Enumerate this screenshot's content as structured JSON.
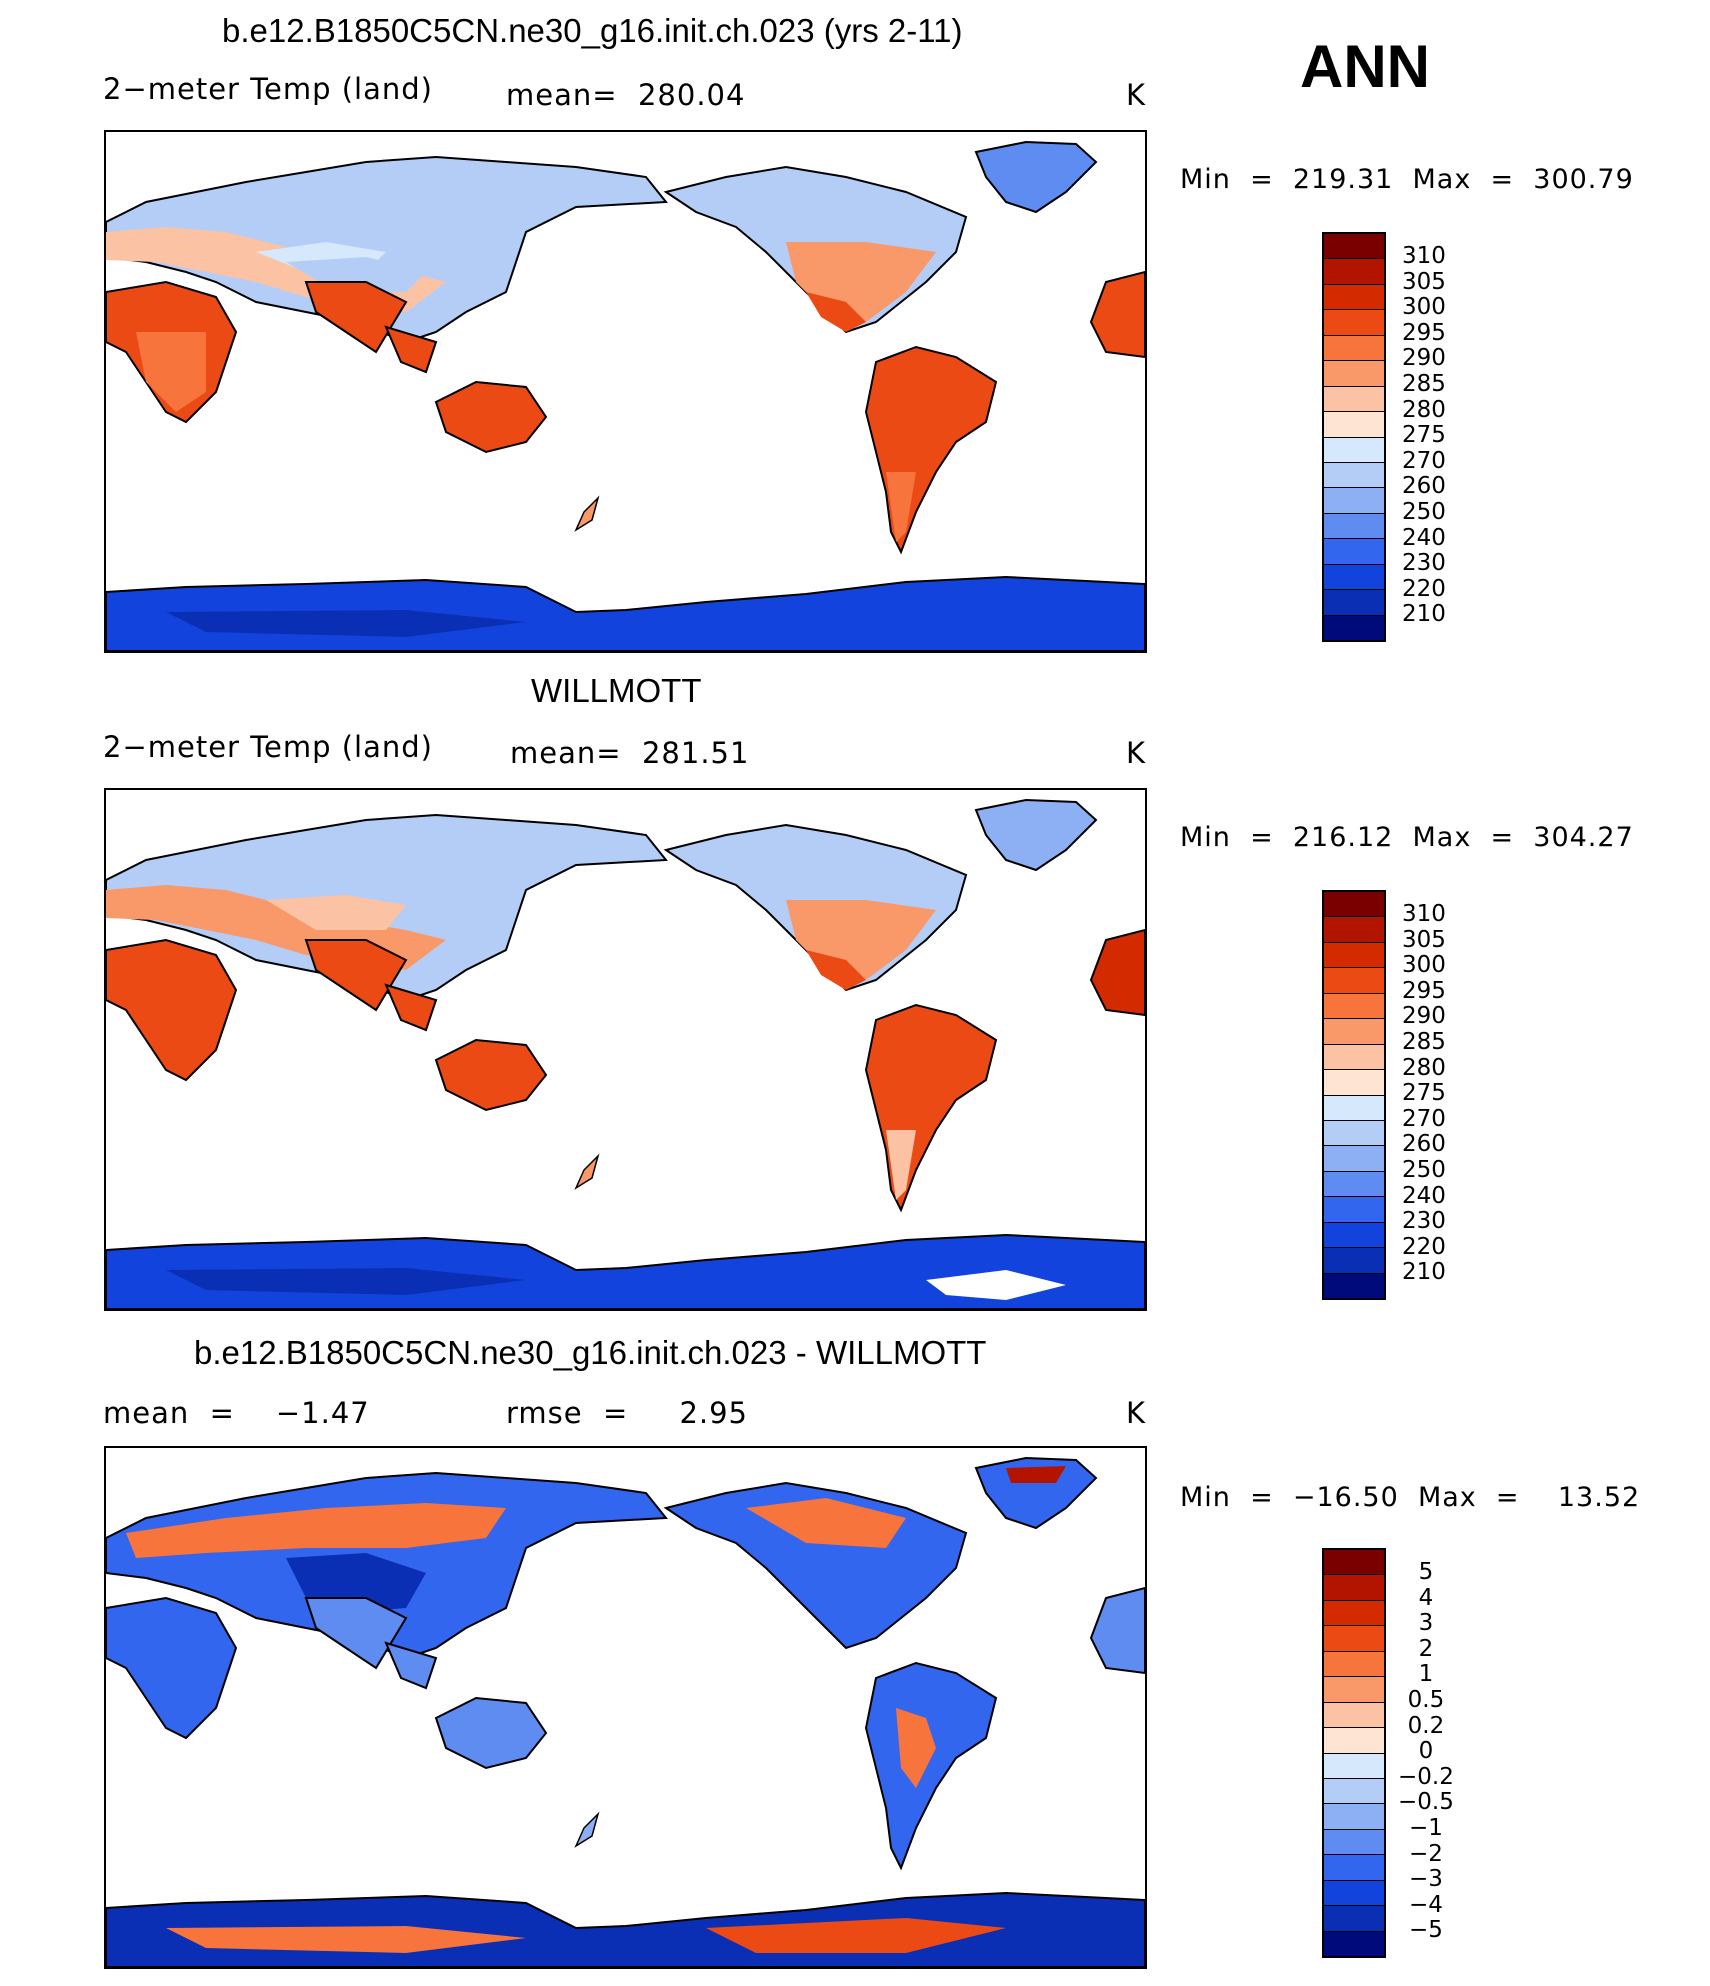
{
  "season": "ANN",
  "panels": [
    {
      "title": "b.e12.B1850C5CN.ne30_g16.init.ch.023 (yrs 2-11)",
      "left": "2−meter Temp (land)",
      "mid": "mean=  280.04",
      "right": "K",
      "minmax": "Min  =  219.31  Max  =  300.79",
      "type": "abs"
    },
    {
      "title": "WILLMOTT",
      "left": "2−meter Temp (land)",
      "mid": "mean=  281.51",
      "right": "K",
      "minmax": "Min  =  216.12  Max  =  304.27",
      "type": "abs"
    },
    {
      "title": "b.e12.B1850C5CN.ne30_g16.init.ch.023 - WILLMOTT",
      "left": "mean  =    −1.47",
      "mid": "rmse  =     2.95",
      "right": "K",
      "minmax": "Min  =  −16.50  Max  =    13.52",
      "type": "diff"
    }
  ],
  "colorbars": {
    "abs_labels": [
      "310",
      "305",
      "300",
      "295",
      "290",
      "285",
      "280",
      "275",
      "270",
      "260",
      "250",
      "240",
      "230",
      "220",
      "210"
    ],
    "diff_labels": [
      "5",
      "4",
      "3",
      "2",
      "1",
      "0.5",
      "0.2",
      "0",
      "−0.2",
      "−0.5",
      "−1",
      "−2",
      "−3",
      "−4",
      "−5"
    ],
    "colors": [
      "#7a0000",
      "#b31400",
      "#d42a00",
      "#ec4a14",
      "#f7743c",
      "#f9996a",
      "#fbc3a3",
      "#fde4d3",
      "#d6e8fb",
      "#b4cdf7",
      "#8db0f4",
      "#5e8cf1",
      "#3366ee",
      "#1244dd",
      "#0a2fb4",
      "#000a7a"
    ]
  },
  "colors": {
    "ocean": "#ffffff",
    "coast": "#000000"
  }
}
